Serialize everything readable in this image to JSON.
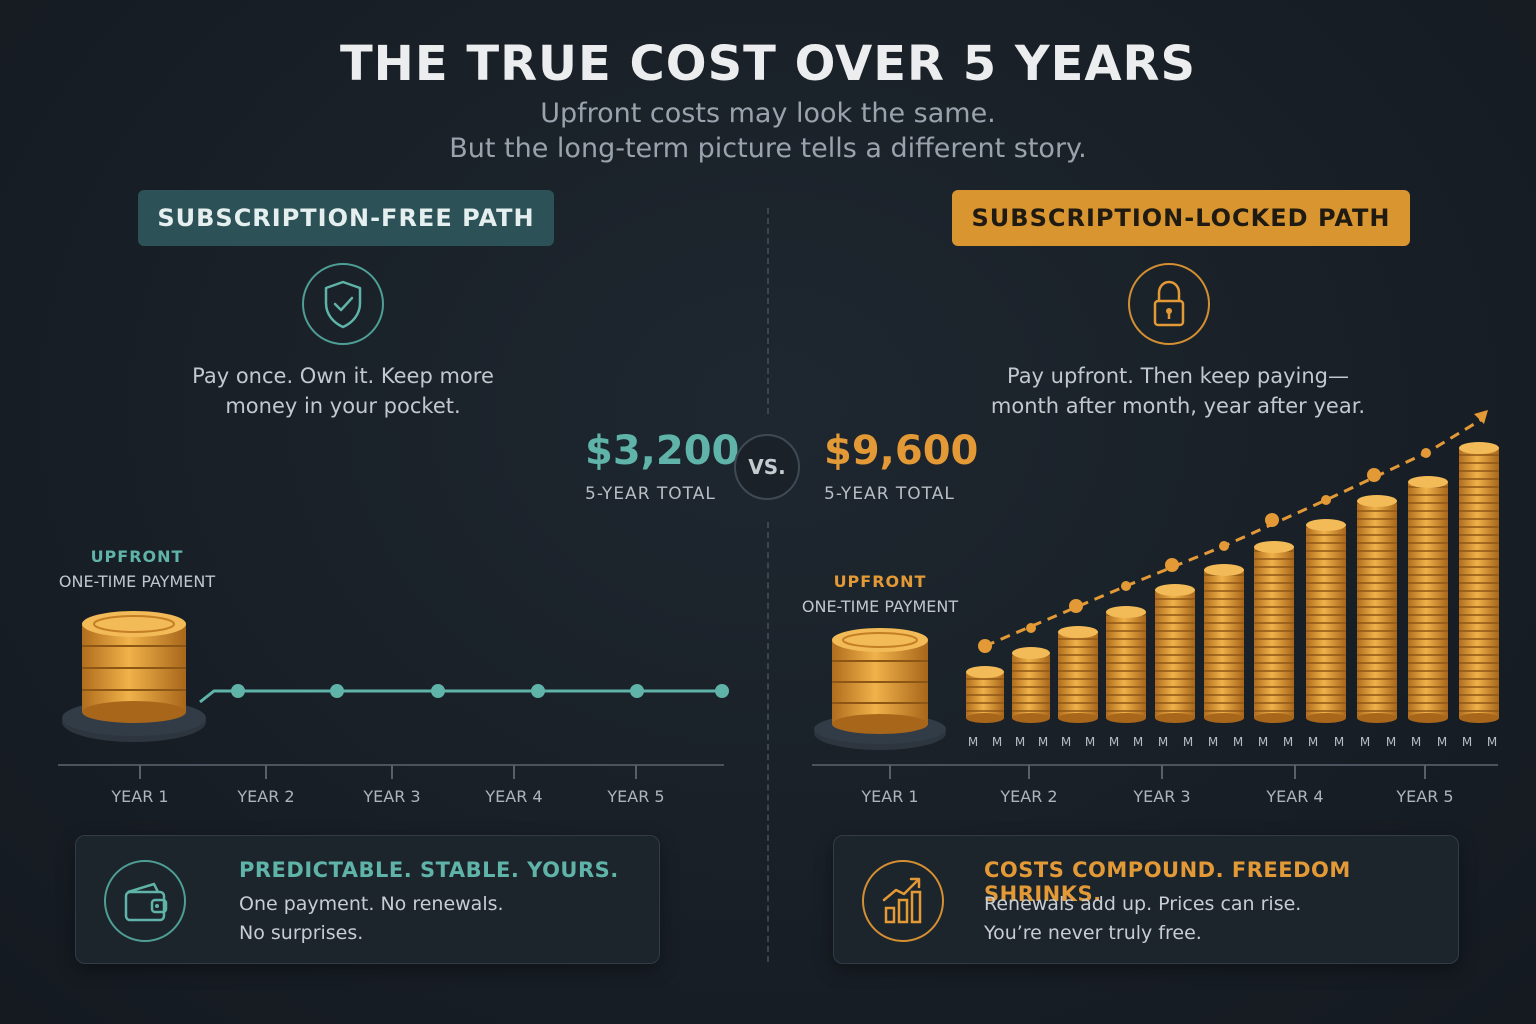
{
  "header": {
    "title": "THE TRUE COST OVER 5 YEARS",
    "subtitle_line1": "Upfront costs may look the same.",
    "subtitle_line2": "But the long-term picture tells a different story."
  },
  "left": {
    "path_label": "SUBSCRIPTION-FREE PATH",
    "icon": "shield-check-icon",
    "tagline_line1": "Pay once. Own it. Keep more",
    "tagline_line2": "money in your pocket.",
    "total_amount": "$3,200",
    "total_label": "5-YEAR TOTAL",
    "upfront_tag": "UPFRONT",
    "upfront_sub": "ONE-TIME PAYMENT",
    "years": [
      "YEAR 1",
      "YEAR 2",
      "YEAR 3",
      "YEAR 4",
      "YEAR 5"
    ],
    "card": {
      "icon": "wallet-icon",
      "heading": "PREDICTABLE. STABLE. YOURS.",
      "body_line1": "One payment. No renewals.",
      "body_line2": "No surprises."
    },
    "accent": "#5fb3a8"
  },
  "vs_label": "VS.",
  "right": {
    "path_label": "SUBSCRIPTION-LOCKED PATH",
    "icon": "padlock-icon",
    "tagline_line1": "Pay upfront. Then keep paying—",
    "tagline_line2": "month after month, year after year.",
    "total_amount": "$9,600",
    "total_label": "5-YEAR TOTAL",
    "upfront_tag": "UPFRONT",
    "upfront_sub": "ONE-TIME PAYMENT",
    "years": [
      "YEAR 1",
      "YEAR 2",
      "YEAR 3",
      "YEAR 4",
      "YEAR 5"
    ],
    "month_marker": "M",
    "card": {
      "icon": "rising-bar-chart-icon",
      "heading": "COSTS COMPOUND. FREEDOM SHRINKS.",
      "body_line1": "Renewals add up. Prices can rise.",
      "body_line2": "You’re never truly free."
    },
    "accent": "#e39a36"
  }
}
